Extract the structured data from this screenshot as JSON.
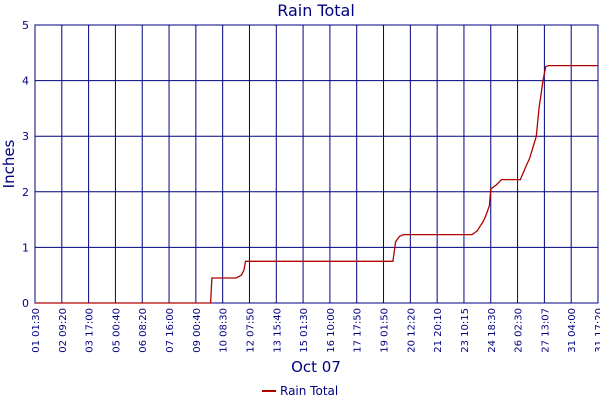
{
  "chart_data": {
    "type": "line",
    "title": "Rain Total",
    "ylabel": "Inches",
    "xlabel": "Oct 07",
    "ylim": [
      0,
      5
    ],
    "yticks": [
      "0",
      "1",
      "2",
      "3",
      "4",
      "5"
    ],
    "grid": true,
    "legend_position": "bottom",
    "categories": [
      "01 01:30",
      "02 09:20",
      "03 17:00",
      "05 00:40",
      "06 08:20",
      "07 16:00",
      "09 00:40",
      "10 08:30",
      "12 07:50",
      "13 15:40",
      "15 01:30",
      "16 10:00",
      "17 17:50",
      "19 01:50",
      "20 12:20",
      "21 20:10",
      "23 10:15",
      "24 18:30",
      "26 02:30",
      "27 13:07",
      "31 04:00",
      "31 17:20"
    ],
    "series": [
      {
        "name": "Rain Total",
        "color": "#b00000",
        "x": [
          0,
          6.55,
          6.6,
          6.8,
          7.5,
          7.7,
          7.8,
          7.85,
          13.35,
          13.45,
          13.6,
          13.75,
          16.3,
          16.5,
          16.6,
          16.7,
          16.8,
          16.95,
          17.0,
          17.2,
          17.4,
          17.5,
          18.1,
          18.35,
          18.45,
          18.7,
          18.8,
          18.95,
          19.05,
          19.15,
          19.5,
          20.5,
          21.0
        ],
        "values": [
          0,
          0,
          0.45,
          0.45,
          0.45,
          0.5,
          0.6,
          0.75,
          0.75,
          1.1,
          1.2,
          1.23,
          1.23,
          1.3,
          1.38,
          1.45,
          1.55,
          1.75,
          2.05,
          2.12,
          2.22,
          2.22,
          2.22,
          2.5,
          2.6,
          3.0,
          3.5,
          4.0,
          4.25,
          4.27,
          4.27,
          4.27,
          4.27
        ]
      }
    ]
  }
}
